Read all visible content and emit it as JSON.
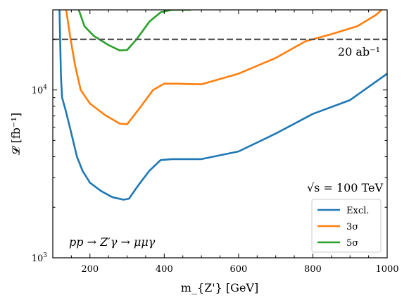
{
  "chart_data": {
    "type": "line",
    "xlabel": "m_{Z'} [GeV]",
    "ylabel": "𝓛 [fb⁻¹]",
    "x_tick_labels": [
      "200",
      "400",
      "600",
      "800",
      "1000"
    ],
    "y_tick_labels": [
      {
        "base": "10",
        "exp": "3",
        "value": 1000
      },
      {
        "base": "10",
        "exp": "4",
        "value": 10000
      }
    ],
    "xlim": [
      100,
      1000
    ],
    "ylim": [
      1000,
      30000
    ],
    "yscale": "log",
    "grid": false,
    "legend_position": "bottom-right",
    "annotations": {
      "luminosity_line_label": "20 ab⁻¹",
      "energy": "√s = 100 TeV",
      "process": "pp → Z′γ → μμγ"
    },
    "reference_line": {
      "y": 20000,
      "style": "dashed",
      "color": "#555555"
    },
    "series": [
      {
        "name": "Excl.",
        "color": "#1f77b4",
        "points": [
          [
            118,
            30000
          ],
          [
            122,
            12000
          ],
          [
            125,
            9000
          ],
          [
            135,
            7500
          ],
          [
            150,
            5500
          ],
          [
            165,
            4000
          ],
          [
            180,
            3300
          ],
          [
            200,
            2800
          ],
          [
            230,
            2500
          ],
          [
            260,
            2300
          ],
          [
            290,
            2220
          ],
          [
            305,
            2250
          ],
          [
            330,
            2700
          ],
          [
            360,
            3300
          ],
          [
            390,
            3820
          ],
          [
            420,
            3870
          ],
          [
            500,
            3870
          ],
          [
            600,
            4300
          ],
          [
            700,
            5500
          ],
          [
            800,
            7200
          ],
          [
            900,
            8700
          ],
          [
            1000,
            12500
          ]
        ]
      },
      {
        "name": "3σ",
        "color": "#ff7f0e",
        "points": [
          [
            136,
            30000
          ],
          [
            148,
            20000
          ],
          [
            160,
            14000
          ],
          [
            175,
            10000
          ],
          [
            200,
            8300
          ],
          [
            240,
            7100
          ],
          [
            280,
            6300
          ],
          [
            300,
            6250
          ],
          [
            330,
            7600
          ],
          [
            370,
            10000
          ],
          [
            400,
            10900
          ],
          [
            430,
            10900
          ],
          [
            500,
            10800
          ],
          [
            600,
            12500
          ],
          [
            700,
            15500
          ],
          [
            780,
            19500
          ],
          [
            850,
            21500
          ],
          [
            920,
            24000
          ],
          [
            970,
            28000
          ],
          [
            985,
            30000
          ]
        ]
      },
      {
        "name": "5σ",
        "color": "#2ca02c",
        "points": [
          [
            170,
            30000
          ],
          [
            185,
            24000
          ],
          [
            210,
            21000
          ],
          [
            250,
            18500
          ],
          [
            280,
            17200
          ],
          [
            300,
            17300
          ],
          [
            325,
            20000
          ],
          [
            360,
            25500
          ],
          [
            390,
            29000
          ],
          [
            420,
            30000
          ],
          [
            470,
            30000
          ]
        ]
      }
    ]
  }
}
